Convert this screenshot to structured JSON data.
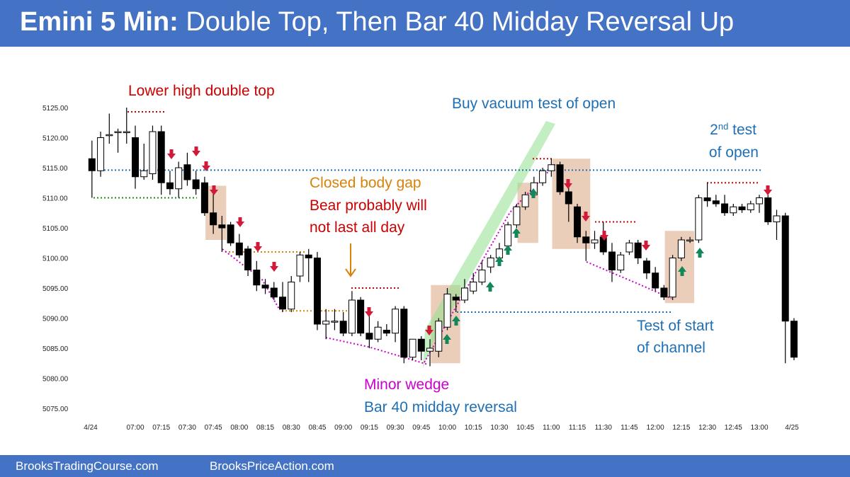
{
  "header": {
    "title_bold": "Emini 5 Min:",
    "title_rest": " Double Top, Then Bar 40 Midday Reversal Up"
  },
  "footer": {
    "left": "BrooksTradingCourse.com",
    "right": "BrooksPriceAction.com"
  },
  "colors": {
    "banner": "#4472c4",
    "red": "#cc0000",
    "blue": "#1f6fb4",
    "orange": "#d9820a",
    "magenta": "#cc00cc",
    "green_arrow": "#11875a",
    "red_arrow": "#d11a3a",
    "channel": "#8fe08f",
    "highlight": "#e6c6ad"
  },
  "chart_data": {
    "type": "candlestick",
    "title": "",
    "ylim": [
      5073,
      5129
    ],
    "yticks": [
      "5075.00",
      "5080.00",
      "5085.00",
      "5090.00",
      "5095.00",
      "5100.00",
      "5105.00",
      "5110.00",
      "5115.00",
      "5120.00",
      "5125.00"
    ],
    "xticks": [
      "4/24",
      "07:00",
      "07:15",
      "07:30",
      "07:45",
      "08:00",
      "08:15",
      "08:30",
      "08:45",
      "09:00",
      "09:15",
      "09:30",
      "09:45",
      "10:00",
      "10:15",
      "10:30",
      "10:45",
      "11:00",
      "11:15",
      "11:30",
      "11:45",
      "12:00",
      "12:15",
      "12:30",
      "12:45",
      "13:00",
      "4/25"
    ],
    "candles": [
      {
        "time": "06:35",
        "open": 5116.5,
        "high": 5119.5,
        "low": 5110.0,
        "close": 5114.5
      },
      {
        "time": "06:40",
        "open": 5114.5,
        "high": 5121.0,
        "low": 5113.5,
        "close": 5120.0
      },
      {
        "time": "06:45",
        "open": 5120.5,
        "high": 5124.0,
        "low": 5119.0,
        "close": 5120.5
      },
      {
        "time": "06:50",
        "open": 5121.0,
        "high": 5121.5,
        "low": 5117.5,
        "close": 5121.0
      },
      {
        "time": "06:55",
        "open": 5121.0,
        "high": 5125.0,
        "low": 5119.0,
        "close": 5121.0
      },
      {
        "time": "07:00",
        "open": 5120.0,
        "high": 5122.0,
        "low": 5111.5,
        "close": 5113.5
      },
      {
        "time": "07:05",
        "open": 5113.5,
        "high": 5119.0,
        "low": 5113.0,
        "close": 5114.5
      },
      {
        "time": "07:10",
        "open": 5114.0,
        "high": 5122.0,
        "low": 5113.0,
        "close": 5121.0
      },
      {
        "time": "07:15",
        "open": 5121.0,
        "high": 5122.0,
        "low": 5110.5,
        "close": 5112.5
      },
      {
        "time": "07:20",
        "open": 5112.5,
        "high": 5114.5,
        "low": 5110.5,
        "close": 5111.5
      },
      {
        "time": "07:25",
        "open": 5111.5,
        "high": 5116.0,
        "low": 5110.0,
        "close": 5115.0
      },
      {
        "time": "07:30",
        "open": 5115.5,
        "high": 5117.5,
        "low": 5112.0,
        "close": 5113.0
      },
      {
        "time": "07:35",
        "open": 5113.0,
        "high": 5114.5,
        "low": 5110.5,
        "close": 5111.5
      },
      {
        "time": "07:40",
        "open": 5112.5,
        "high": 5113.5,
        "low": 5107.0,
        "close": 5107.5
      },
      {
        "time": "07:45",
        "open": 5107.5,
        "high": 5111.0,
        "low": 5104.0,
        "close": 5105.5
      },
      {
        "time": "07:50",
        "open": 5105.5,
        "high": 5107.0,
        "low": 5101.0,
        "close": 5105.0
      },
      {
        "time": "07:55",
        "open": 5105.5,
        "high": 5106.0,
        "low": 5102.0,
        "close": 5102.5
      },
      {
        "time": "08:00",
        "open": 5102.5,
        "high": 5104.0,
        "low": 5100.0,
        "close": 5100.5
      },
      {
        "time": "08:05",
        "open": 5101.5,
        "high": 5102.0,
        "low": 5097.0,
        "close": 5098.0
      },
      {
        "time": "08:10",
        "open": 5098.0,
        "high": 5099.5,
        "low": 5094.5,
        "close": 5095.5
      },
      {
        "time": "08:15",
        "open": 5095.5,
        "high": 5096.5,
        "low": 5094.0,
        "close": 5095.0
      },
      {
        "time": "08:20",
        "open": 5095.0,
        "high": 5096.0,
        "low": 5093.0,
        "close": 5093.5
      },
      {
        "time": "08:25",
        "open": 5093.5,
        "high": 5096.0,
        "low": 5091.0,
        "close": 5091.5
      },
      {
        "time": "08:30",
        "open": 5091.5,
        "high": 5097.0,
        "low": 5091.0,
        "close": 5096.0
      },
      {
        "time": "08:35",
        "open": 5097.0,
        "high": 5101.0,
        "low": 5096.0,
        "close": 5100.5
      },
      {
        "time": "08:40",
        "open": 5100.5,
        "high": 5101.5,
        "low": 5096.0,
        "close": 5100.0
      },
      {
        "time": "08:45",
        "open": 5100.0,
        "high": 5101.0,
        "low": 5088.0,
        "close": 5089.0
      },
      {
        "time": "08:50",
        "open": 5089.0,
        "high": 5091.5,
        "low": 5086.5,
        "close": 5089.5
      },
      {
        "time": "08:55",
        "open": 5089.5,
        "high": 5091.5,
        "low": 5088.0,
        "close": 5089.5
      },
      {
        "time": "09:00",
        "open": 5089.5,
        "high": 5091.0,
        "low": 5087.0,
        "close": 5087.5
      },
      {
        "time": "09:05",
        "open": 5087.5,
        "high": 5094.5,
        "low": 5087.0,
        "close": 5093.0
      },
      {
        "time": "09:10",
        "open": 5093.0,
        "high": 5093.5,
        "low": 5087.0,
        "close": 5087.5
      },
      {
        "time": "09:15",
        "open": 5087.5,
        "high": 5091.0,
        "low": 5085.0,
        "close": 5086.5
      },
      {
        "time": "09:20",
        "open": 5086.5,
        "high": 5089.5,
        "low": 5086.0,
        "close": 5088.5
      },
      {
        "time": "09:25",
        "open": 5088.0,
        "high": 5089.0,
        "low": 5087.0,
        "close": 5087.5
      },
      {
        "time": "09:30",
        "open": 5087.5,
        "high": 5092.0,
        "low": 5086.0,
        "close": 5091.5
      },
      {
        "time": "09:35",
        "open": 5091.5,
        "high": 5092.0,
        "low": 5082.5,
        "close": 5083.5
      },
      {
        "time": "09:40",
        "open": 5083.5,
        "high": 5086.5,
        "low": 5083.0,
        "close": 5086.5
      },
      {
        "time": "09:45",
        "open": 5086.5,
        "high": 5087.0,
        "low": 5083.0,
        "close": 5084.5
      },
      {
        "time": "09:50",
        "open": 5084.5,
        "high": 5086.5,
        "low": 5082.0,
        "close": 5085.0
      },
      {
        "time": "09:55",
        "open": 5084.5,
        "high": 5090.0,
        "low": 5083.5,
        "close": 5089.5
      },
      {
        "time": "10:00",
        "open": 5088.5,
        "high": 5095.0,
        "low": 5088.0,
        "close": 5094.0
      },
      {
        "time": "10:05",
        "open": 5093.5,
        "high": 5094.0,
        "low": 5091.0,
        "close": 5093.0
      },
      {
        "time": "10:10",
        "open": 5093.0,
        "high": 5096.5,
        "low": 5092.5,
        "close": 5095.0
      },
      {
        "time": "10:15",
        "open": 5094.5,
        "high": 5097.5,
        "low": 5094.0,
        "close": 5096.0
      },
      {
        "time": "10:20",
        "open": 5096.0,
        "high": 5099.5,
        "low": 5095.5,
        "close": 5098.0
      },
      {
        "time": "10:25",
        "open": 5098.5,
        "high": 5100.5,
        "low": 5097.5,
        "close": 5100.0
      },
      {
        "time": "10:30",
        "open": 5100.0,
        "high": 5102.5,
        "low": 5099.5,
        "close": 5101.5
      },
      {
        "time": "10:35",
        "open": 5102.0,
        "high": 5106.0,
        "low": 5101.5,
        "close": 5105.5
      },
      {
        "time": "10:40",
        "open": 5105.5,
        "high": 5109.0,
        "low": 5105.0,
        "close": 5108.5
      },
      {
        "time": "10:45",
        "open": 5108.5,
        "high": 5111.0,
        "low": 5108.0,
        "close": 5110.5
      },
      {
        "time": "10:50",
        "open": 5110.5,
        "high": 5113.5,
        "low": 5110.0,
        "close": 5112.5
      },
      {
        "time": "10:55",
        "open": 5112.5,
        "high": 5115.0,
        "low": 5112.0,
        "close": 5114.5
      },
      {
        "time": "11:00",
        "open": 5114.5,
        "high": 5116.5,
        "low": 5113.5,
        "close": 5115.5
      },
      {
        "time": "11:05",
        "open": 5115.5,
        "high": 5116.0,
        "low": 5110.5,
        "close": 5111.0
      },
      {
        "time": "11:10",
        "open": 5111.0,
        "high": 5112.0,
        "low": 5106.0,
        "close": 5109.0
      },
      {
        "time": "11:15",
        "open": 5108.5,
        "high": 5109.0,
        "low": 5102.5,
        "close": 5103.5
      },
      {
        "time": "11:20",
        "open": 5103.5,
        "high": 5104.5,
        "low": 5099.5,
        "close": 5102.5
      },
      {
        "time": "11:25",
        "open": 5102.5,
        "high": 5104.5,
        "low": 5101.5,
        "close": 5103.0
      },
      {
        "time": "11:30",
        "open": 5103.5,
        "high": 5106.0,
        "low": 5100.5,
        "close": 5101.0
      },
      {
        "time": "11:35",
        "open": 5101.0,
        "high": 5102.5,
        "low": 5096.0,
        "close": 5098.0
      },
      {
        "time": "11:40",
        "open": 5098.0,
        "high": 5101.0,
        "low": 5097.5,
        "close": 5100.5
      },
      {
        "time": "11:45",
        "open": 5101.0,
        "high": 5103.0,
        "low": 5100.5,
        "close": 5102.5
      },
      {
        "time": "11:50",
        "open": 5102.5,
        "high": 5103.0,
        "low": 5099.0,
        "close": 5100.0
      },
      {
        "time": "11:55",
        "open": 5099.5,
        "high": 5100.0,
        "low": 5096.5,
        "close": 5097.5
      },
      {
        "time": "12:00",
        "open": 5097.5,
        "high": 5098.5,
        "low": 5094.5,
        "close": 5095.0
      },
      {
        "time": "12:05",
        "open": 5095.0,
        "high": 5095.5,
        "low": 5093.0,
        "close": 5093.5
      },
      {
        "time": "12:10",
        "open": 5093.5,
        "high": 5100.5,
        "low": 5093.0,
        "close": 5100.0
      },
      {
        "time": "12:15",
        "open": 5100.0,
        "high": 5103.5,
        "low": 5099.5,
        "close": 5103.0
      },
      {
        "time": "12:20",
        "open": 5103.0,
        "high": 5103.5,
        "low": 5102.5,
        "close": 5103.0
      },
      {
        "time": "12:25",
        "open": 5103.0,
        "high": 5110.5,
        "low": 5102.5,
        "close": 5110.0
      },
      {
        "time": "12:30",
        "open": 5110.0,
        "high": 5112.5,
        "low": 5108.5,
        "close": 5109.5
      },
      {
        "time": "12:35",
        "open": 5109.5,
        "high": 5110.5,
        "low": 5108.5,
        "close": 5109.0
      },
      {
        "time": "12:40",
        "open": 5109.0,
        "high": 5110.5,
        "low": 5107.0,
        "close": 5107.5
      },
      {
        "time": "12:45",
        "open": 5107.5,
        "high": 5109.0,
        "low": 5107.0,
        "close": 5108.5
      },
      {
        "time": "12:50",
        "open": 5108.5,
        "high": 5109.0,
        "low": 5107.5,
        "close": 5108.0
      },
      {
        "time": "12:55",
        "open": 5108.0,
        "high": 5109.5,
        "low": 5107.5,
        "close": 5109.0
      },
      {
        "time": "13:00",
        "open": 5109.0,
        "high": 5110.5,
        "low": 5107.5,
        "close": 5110.0
      },
      {
        "time": "13:05",
        "open": 5110.0,
        "high": 5110.5,
        "low": 5105.5,
        "close": 5106.0
      },
      {
        "time": "13:10",
        "open": 5106.0,
        "high": 5108.0,
        "low": 5103.0,
        "close": 5107.0
      },
      {
        "time": "13:15",
        "open": 5107.0,
        "high": 5107.5,
        "low": 5082.5,
        "close": 5089.5
      },
      {
        "time": "13:20",
        "open": 5089.5,
        "high": 5090.0,
        "low": 5083.0,
        "close": 5083.5
      }
    ],
    "annotations": [
      {
        "text": "Lower high double top",
        "color": "red"
      },
      {
        "text": "Buy vacuum test of open",
        "color": "blue"
      },
      {
        "text": "2",
        "sup": "nd",
        "text2": " test",
        "color": "blue"
      },
      {
        "text": "of open",
        "color": "blue"
      },
      {
        "text": "Closed body gap",
        "color": "orange"
      },
      {
        "text": "Bear probably will",
        "color": "red"
      },
      {
        "text": "not last all day",
        "color": "red"
      },
      {
        "text": "Minor wedge",
        "color": "magenta"
      },
      {
        "text": "Bar 40 midday reversal",
        "color": "blue"
      },
      {
        "text": "Test of start",
        "color": "blue"
      },
      {
        "text": "of channel",
        "color": "blue"
      }
    ]
  }
}
